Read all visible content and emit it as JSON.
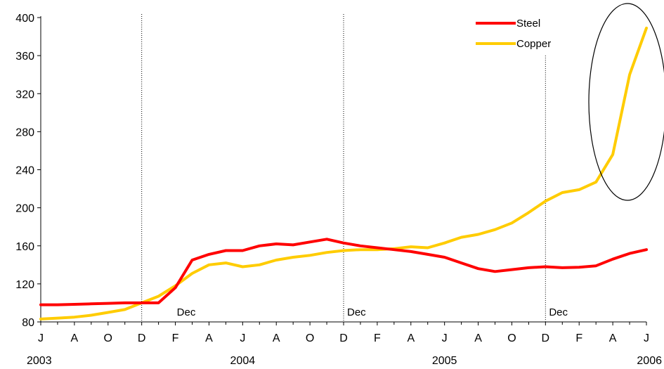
{
  "chart_data": {
    "type": "line",
    "title": "",
    "xlabel": "",
    "ylabel": "",
    "ylim": [
      80,
      400
    ],
    "yticks": [
      "80",
      "120",
      "160",
      "200",
      "240",
      "280",
      "320",
      "360",
      "400"
    ],
    "x_month_labels": [
      "J",
      "A",
      "O",
      "D",
      "F",
      "A",
      "J",
      "A",
      "O",
      "D",
      "F",
      "A",
      "J",
      "A",
      "O",
      "D",
      "F",
      "A",
      "J"
    ],
    "x_year_labels": [
      "2003",
      "2004",
      "2005",
      "2006"
    ],
    "annotations": [
      "Dec",
      "Dec",
      "Dec"
    ],
    "reference_lines": "dotted vertical lines at each Dec",
    "highlight": "ellipse around the final rise of Copper",
    "grid": false,
    "legend_position": "top-right",
    "series": [
      {
        "name": "Steel",
        "color": "#ff0000",
        "values": [
          98,
          98,
          98.5,
          99,
          99.5,
          100,
          100,
          100,
          116,
          145,
          151,
          155,
          155,
          160,
          162,
          161,
          164,
          167,
          163,
          160,
          158,
          156,
          154,
          151,
          148,
          142,
          136,
          133,
          135,
          137,
          138,
          137,
          137.5,
          139,
          146,
          152,
          156
        ]
      },
      {
        "name": "Copper",
        "color": "#ffcc00",
        "values": [
          83,
          84,
          85,
          87,
          90,
          93,
          100,
          107,
          118,
          131,
          140,
          142,
          138,
          140,
          145,
          148,
          150,
          153,
          155,
          156,
          156,
          157,
          159,
          158,
          163,
          169,
          172,
          177,
          184,
          195,
          207,
          216,
          219,
          227,
          256,
          340,
          389
        ]
      }
    ]
  }
}
